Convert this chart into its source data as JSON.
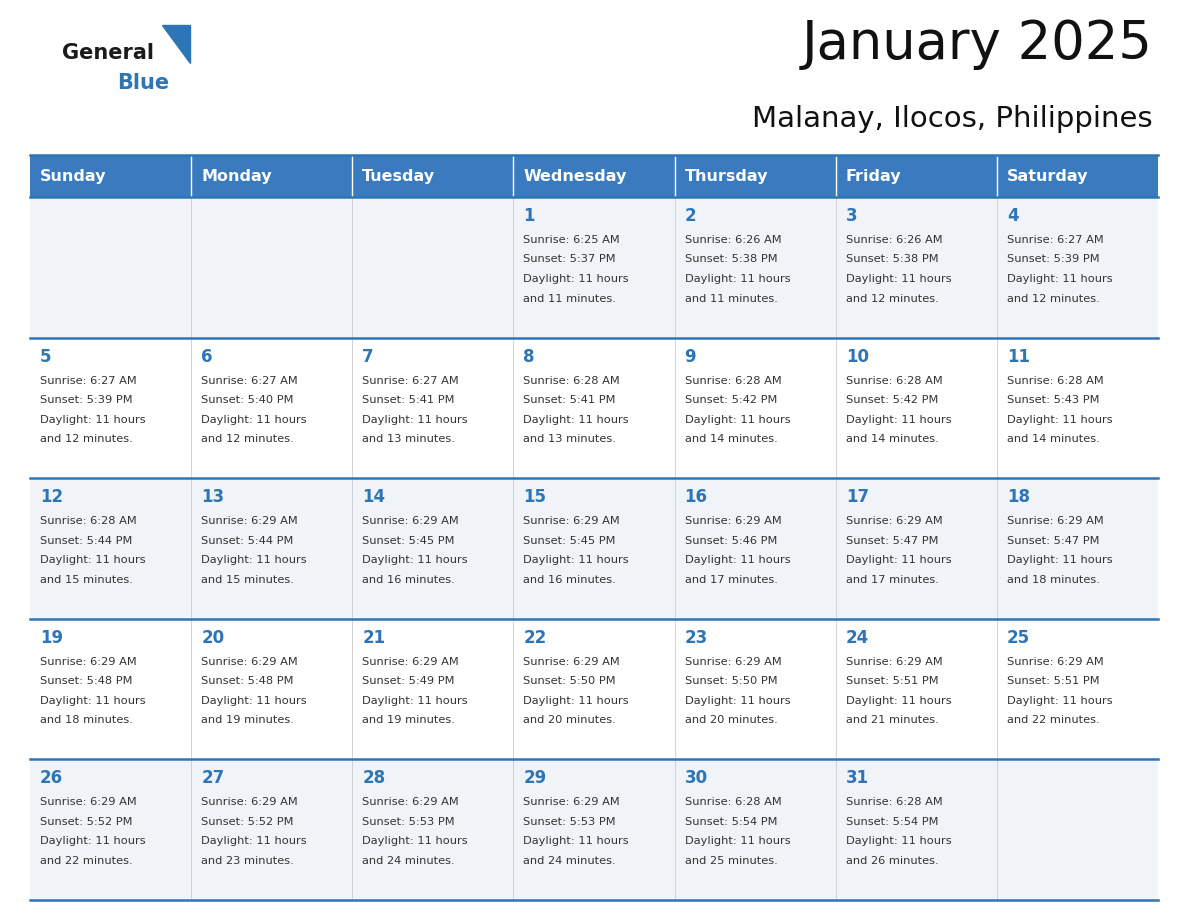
{
  "title": "January 2025",
  "subtitle": "Malanay, Ilocos, Philippines",
  "days_of_week": [
    "Sunday",
    "Monday",
    "Tuesday",
    "Wednesday",
    "Thursday",
    "Friday",
    "Saturday"
  ],
  "header_bg": "#3a7abf",
  "header_text": "#ffffff",
  "row_bg_odd": "#f0f4f8",
  "row_bg_even": "#ffffff",
  "day_number_color": "#2e75b6",
  "text_color": "#333333",
  "line_color": "#2e75b6",
  "logo_black": "#1a1a1a",
  "logo_blue": "#2e75b6",
  "calendar": [
    [
      {
        "day": null,
        "sunrise": null,
        "sunset": null,
        "daylight": null
      },
      {
        "day": null,
        "sunrise": null,
        "sunset": null,
        "daylight": null
      },
      {
        "day": null,
        "sunrise": null,
        "sunset": null,
        "daylight": null
      },
      {
        "day": 1,
        "sunrise": "6:25 AM",
        "sunset": "5:37 PM",
        "daylight": "11 hours and 11 minutes."
      },
      {
        "day": 2,
        "sunrise": "6:26 AM",
        "sunset": "5:38 PM",
        "daylight": "11 hours and 11 minutes."
      },
      {
        "day": 3,
        "sunrise": "6:26 AM",
        "sunset": "5:38 PM",
        "daylight": "11 hours and 12 minutes."
      },
      {
        "day": 4,
        "sunrise": "6:27 AM",
        "sunset": "5:39 PM",
        "daylight": "11 hours and 12 minutes."
      }
    ],
    [
      {
        "day": 5,
        "sunrise": "6:27 AM",
        "sunset": "5:39 PM",
        "daylight": "11 hours and 12 minutes."
      },
      {
        "day": 6,
        "sunrise": "6:27 AM",
        "sunset": "5:40 PM",
        "daylight": "11 hours and 12 minutes."
      },
      {
        "day": 7,
        "sunrise": "6:27 AM",
        "sunset": "5:41 PM",
        "daylight": "11 hours and 13 minutes."
      },
      {
        "day": 8,
        "sunrise": "6:28 AM",
        "sunset": "5:41 PM",
        "daylight": "11 hours and 13 minutes."
      },
      {
        "day": 9,
        "sunrise": "6:28 AM",
        "sunset": "5:42 PM",
        "daylight": "11 hours and 14 minutes."
      },
      {
        "day": 10,
        "sunrise": "6:28 AM",
        "sunset": "5:42 PM",
        "daylight": "11 hours and 14 minutes."
      },
      {
        "day": 11,
        "sunrise": "6:28 AM",
        "sunset": "5:43 PM",
        "daylight": "11 hours and 14 minutes."
      }
    ],
    [
      {
        "day": 12,
        "sunrise": "6:28 AM",
        "sunset": "5:44 PM",
        "daylight": "11 hours and 15 minutes."
      },
      {
        "day": 13,
        "sunrise": "6:29 AM",
        "sunset": "5:44 PM",
        "daylight": "11 hours and 15 minutes."
      },
      {
        "day": 14,
        "sunrise": "6:29 AM",
        "sunset": "5:45 PM",
        "daylight": "11 hours and 16 minutes."
      },
      {
        "day": 15,
        "sunrise": "6:29 AM",
        "sunset": "5:45 PM",
        "daylight": "11 hours and 16 minutes."
      },
      {
        "day": 16,
        "sunrise": "6:29 AM",
        "sunset": "5:46 PM",
        "daylight": "11 hours and 17 minutes."
      },
      {
        "day": 17,
        "sunrise": "6:29 AM",
        "sunset": "5:47 PM",
        "daylight": "11 hours and 17 minutes."
      },
      {
        "day": 18,
        "sunrise": "6:29 AM",
        "sunset": "5:47 PM",
        "daylight": "11 hours and 18 minutes."
      }
    ],
    [
      {
        "day": 19,
        "sunrise": "6:29 AM",
        "sunset": "5:48 PM",
        "daylight": "11 hours and 18 minutes."
      },
      {
        "day": 20,
        "sunrise": "6:29 AM",
        "sunset": "5:48 PM",
        "daylight": "11 hours and 19 minutes."
      },
      {
        "day": 21,
        "sunrise": "6:29 AM",
        "sunset": "5:49 PM",
        "daylight": "11 hours and 19 minutes."
      },
      {
        "day": 22,
        "sunrise": "6:29 AM",
        "sunset": "5:50 PM",
        "daylight": "11 hours and 20 minutes."
      },
      {
        "day": 23,
        "sunrise": "6:29 AM",
        "sunset": "5:50 PM",
        "daylight": "11 hours and 20 minutes."
      },
      {
        "day": 24,
        "sunrise": "6:29 AM",
        "sunset": "5:51 PM",
        "daylight": "11 hours and 21 minutes."
      },
      {
        "day": 25,
        "sunrise": "6:29 AM",
        "sunset": "5:51 PM",
        "daylight": "11 hours and 22 minutes."
      }
    ],
    [
      {
        "day": 26,
        "sunrise": "6:29 AM",
        "sunset": "5:52 PM",
        "daylight": "11 hours and 22 minutes."
      },
      {
        "day": 27,
        "sunrise": "6:29 AM",
        "sunset": "5:52 PM",
        "daylight": "11 hours and 23 minutes."
      },
      {
        "day": 28,
        "sunrise": "6:29 AM",
        "sunset": "5:53 PM",
        "daylight": "11 hours and 24 minutes."
      },
      {
        "day": 29,
        "sunrise": "6:29 AM",
        "sunset": "5:53 PM",
        "daylight": "11 hours and 24 minutes."
      },
      {
        "day": 30,
        "sunrise": "6:28 AM",
        "sunset": "5:54 PM",
        "daylight": "11 hours and 25 minutes."
      },
      {
        "day": 31,
        "sunrise": "6:28 AM",
        "sunset": "5:54 PM",
        "daylight": "11 hours and 26 minutes."
      },
      {
        "day": null,
        "sunrise": null,
        "sunset": null,
        "daylight": null
      }
    ]
  ]
}
